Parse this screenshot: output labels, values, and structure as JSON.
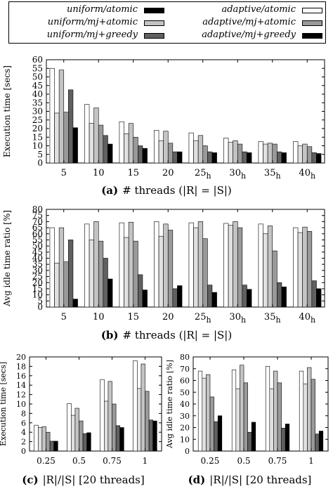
{
  "legend": {
    "items": [
      {
        "label": "uniform/atomic",
        "color": "#000000"
      },
      {
        "label": "adaptive/atomic",
        "color": "#ffffff"
      },
      {
        "label": "uniform/mj+atomic",
        "color": "#c4c4c4"
      },
      {
        "label": "adaptive/mj+atomic",
        "color": "#9a9a9a"
      },
      {
        "label": "uniform/mj+greedy",
        "color": "#606060"
      },
      {
        "label": "adaptive/mj+greedy",
        "color": "#000000"
      }
    ]
  },
  "bar_colors": [
    "#ffffff",
    "#e0e0e0",
    "#c4c4c4",
    "#9a9a9a",
    "#606060",
    "#000000"
  ],
  "captions": {
    "a": {
      "tag": "(a)",
      "text": "# threads (|R| = |S|)"
    },
    "b": {
      "tag": "(b)",
      "text": "# threads (|R| = |S|)"
    },
    "c": {
      "tag": "(c)",
      "text": "|R|/|S| [20 threads]"
    },
    "d": {
      "tag": "(d)",
      "text": "|R|/|S| [20 threads]"
    }
  },
  "chart_data": [
    {
      "id": "a",
      "type": "bar",
      "ylabel": "Execution time [secs]",
      "ylim": [
        0,
        60
      ],
      "yticks": [
        0,
        5,
        10,
        15,
        20,
        25,
        30,
        35,
        40,
        45,
        50,
        55,
        60
      ],
      "grid": false,
      "categories": [
        {
          "main": "5",
          "sub": ""
        },
        {
          "main": "10",
          "sub": ""
        },
        {
          "main": "15",
          "sub": ""
        },
        {
          "main": "20",
          "sub": ""
        },
        {
          "main": "25",
          "sub": "h"
        },
        {
          "main": "30",
          "sub": "h"
        },
        {
          "main": "35",
          "sub": "h"
        },
        {
          "main": "40",
          "sub": "h"
        }
      ],
      "values": [
        [
          55,
          29,
          54,
          29.5,
          42.5,
          20.5
        ],
        [
          34,
          23,
          32,
          22,
          16,
          11
        ],
        [
          24,
          17,
          23,
          15,
          10,
          8.5
        ],
        [
          19,
          13,
          18.5,
          11.5,
          6.5,
          6.5
        ],
        [
          17.5,
          13,
          16,
          10,
          6.5,
          6
        ],
        [
          14.5,
          12,
          13,
          11,
          6.5,
          6
        ],
        [
          12.5,
          11,
          11.5,
          11,
          6.5,
          6
        ],
        [
          12.5,
          10,
          11,
          9.5,
          6,
          5.5
        ]
      ]
    },
    {
      "id": "b",
      "type": "bar",
      "ylabel": "Avg idle time ratio [%]",
      "ylim": [
        0,
        80
      ],
      "yticks": [
        0,
        5,
        10,
        15,
        20,
        25,
        30,
        35,
        40,
        45,
        50,
        55,
        60,
        65,
        70,
        75,
        80
      ],
      "grid": false,
      "categories": [
        {
          "main": "5",
          "sub": ""
        },
        {
          "main": "10",
          "sub": ""
        },
        {
          "main": "15",
          "sub": ""
        },
        {
          "main": "20",
          "sub": ""
        },
        {
          "main": "25",
          "sub": "h"
        },
        {
          "main": "30",
          "sub": "h"
        },
        {
          "main": "35",
          "sub": "h"
        },
        {
          "main": "40",
          "sub": "h"
        }
      ],
      "values": [
        [
          65,
          36,
          65,
          37,
          55,
          6.5
        ],
        [
          68,
          55,
          70,
          54,
          40,
          23
        ],
        [
          69,
          57,
          69.5,
          54,
          26.5,
          14
        ],
        [
          70,
          58,
          68,
          63,
          15,
          17.5
        ],
        [
          69,
          65,
          70,
          56,
          18,
          12
        ],
        [
          68.5,
          67,
          70,
          65,
          18,
          14.5
        ],
        [
          68,
          60,
          66.5,
          46,
          20,
          16.5
        ],
        [
          65,
          61,
          65.5,
          62,
          21.5,
          15
        ]
      ]
    },
    {
      "id": "c",
      "type": "bar",
      "ylabel": "Execution time [secs]",
      "ylim": [
        0,
        20
      ],
      "yticks": [
        0,
        2,
        4,
        6,
        8,
        10,
        12,
        14,
        16,
        18,
        20
      ],
      "grid": false,
      "categories": [
        {
          "main": "0.25",
          "sub": ""
        },
        {
          "main": "0.5",
          "sub": ""
        },
        {
          "main": "0.75",
          "sub": ""
        },
        {
          "main": "1",
          "sub": ""
        }
      ],
      "values": [
        [
          5.5,
          5,
          5.2,
          4,
          2.1,
          2.1
        ],
        [
          10.1,
          7.6,
          9.1,
          6.4,
          3.7,
          3.9
        ],
        [
          15.2,
          10.6,
          14.8,
          10,
          5.4,
          5
        ],
        [
          19.2,
          13.3,
          18.5,
          12.7,
          6.6,
          6.4
        ]
      ]
    },
    {
      "id": "d",
      "type": "bar",
      "ylabel": "Avg idle time ratio [%]",
      "ylim": [
        0,
        80
      ],
      "yticks": [
        0,
        10,
        20,
        30,
        40,
        50,
        60,
        70,
        80
      ],
      "grid": false,
      "categories": [
        {
          "main": "0.25",
          "sub": ""
        },
        {
          "main": "0.5",
          "sub": ""
        },
        {
          "main": "0.75",
          "sub": ""
        },
        {
          "main": "1",
          "sub": ""
        }
      ],
      "values": [
        [
          68,
          62,
          65,
          46,
          25,
          30
        ],
        [
          69,
          53,
          73,
          58,
          16,
          24.5
        ],
        [
          72,
          53,
          68,
          58,
          19.5,
          23
        ],
        [
          68,
          57,
          71,
          61,
          14.5,
          17
        ]
      ]
    }
  ]
}
